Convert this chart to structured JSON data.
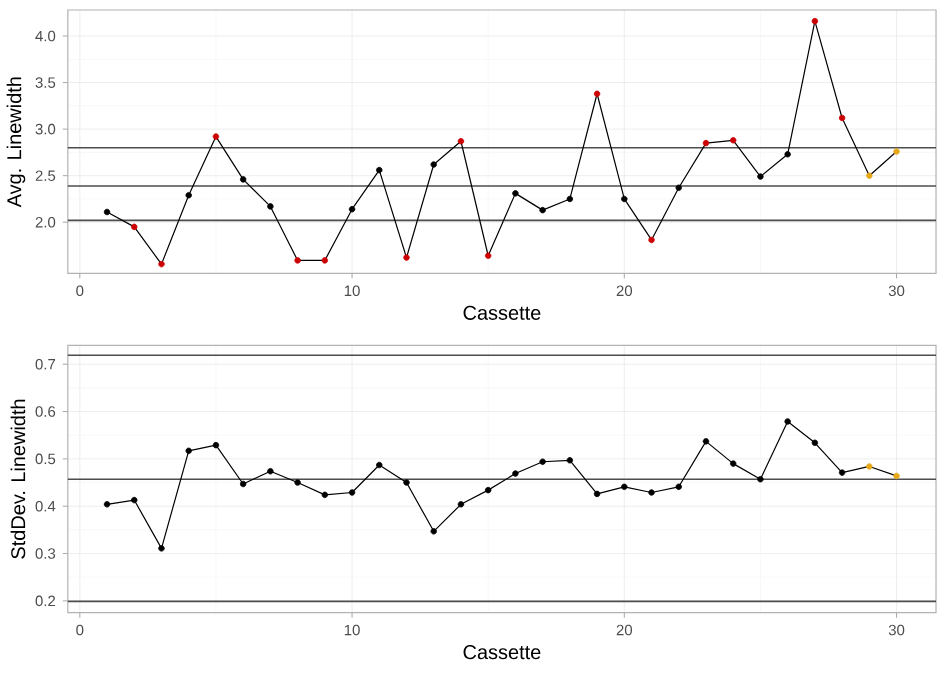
{
  "chart_data": [
    {
      "type": "line",
      "xlabel": "Cassette",
      "ylabel": "Avg. Linewidth",
      "grid": true,
      "marker": "circle",
      "line_style": "solid",
      "xlim": [
        -0.44,
        31.45
      ],
      "ylim": [
        1.45,
        4.28
      ],
      "xticks": [
        0,
        10,
        20,
        30
      ],
      "yticks": [
        {
          "value": 2.0,
          "label": "2.0"
        },
        {
          "value": 2.5,
          "label": "2.5"
        },
        {
          "value": 3.0,
          "label": "3.0"
        },
        {
          "value": 3.5,
          "label": "3.5"
        },
        {
          "value": 4.0,
          "label": "4.0"
        }
      ],
      "x": [
        1,
        2,
        3,
        4,
        5,
        6,
        7,
        8,
        9,
        10,
        11,
        12,
        13,
        14,
        15,
        16,
        17,
        18,
        19,
        20,
        21,
        22,
        23,
        24,
        25,
        26,
        27,
        28,
        29,
        30
      ],
      "values": [
        2.11,
        1.95,
        1.55,
        2.29,
        2.92,
        2.46,
        2.17,
        1.59,
        1.59,
        2.14,
        2.56,
        1.62,
        2.62,
        2.87,
        1.64,
        2.31,
        2.13,
        2.25,
        3.38,
        2.25,
        1.81,
        2.37,
        2.85,
        2.88,
        2.49,
        2.73,
        4.16,
        3.12,
        2.5,
        2.76
      ],
      "color": "#000000",
      "colors": [
        "#000000",
        "#cc0000",
        "#cc0000",
        "#000000",
        "#cc0000",
        "#000000",
        "#000000",
        "#cc0000",
        "#cc0000",
        "#000000",
        "#000000",
        "#cc0000",
        "#000000",
        "#cc0000",
        "#cc0000",
        "#000000",
        "#000000",
        "#000000",
        "#cc0000",
        "#000000",
        "#cc0000",
        "#000000",
        "#cc0000",
        "#cc0000",
        "#000000",
        "#000000",
        "#cc0000",
        "#cc0000",
        "#e6a817",
        "#e6a817"
      ],
      "ref_lines": [
        {
          "axis": "y",
          "value": 2.8,
          "color": "#4d4d4d"
        },
        {
          "axis": "y",
          "value": 2.39,
          "color": "#4d4d4d"
        },
        {
          "axis": "y",
          "value": 2.02,
          "color": "#4d4d4d"
        }
      ]
    },
    {
      "type": "line",
      "xlabel": "Cassette",
      "ylabel": "StdDev. Linewidth",
      "grid": true,
      "marker": "circle",
      "line_style": "solid",
      "xlim": [
        -0.44,
        31.45
      ],
      "ylim": [
        0.175,
        0.74
      ],
      "xticks": [
        0,
        10,
        20,
        30
      ],
      "yticks": [
        0.2,
        0.3,
        0.4,
        0.5,
        0.6,
        0.7
      ],
      "x": [
        1,
        2,
        3,
        4,
        5,
        6,
        7,
        8,
        9,
        10,
        11,
        12,
        13,
        14,
        15,
        16,
        17,
        18,
        19,
        20,
        21,
        22,
        23,
        24,
        25,
        26,
        27,
        28,
        29,
        30
      ],
      "values": [
        0.404,
        0.413,
        0.311,
        0.517,
        0.529,
        0.447,
        0.474,
        0.45,
        0.424,
        0.429,
        0.487,
        0.45,
        0.347,
        0.404,
        0.434,
        0.469,
        0.494,
        0.497,
        0.426,
        0.441,
        0.429,
        0.441,
        0.537,
        0.49,
        0.457,
        0.579,
        0.534,
        0.471,
        0.484,
        0.464
      ],
      "color": "#000000",
      "colors": [
        "#000000",
        "#000000",
        "#000000",
        "#000000",
        "#000000",
        "#000000",
        "#000000",
        "#000000",
        "#000000",
        "#000000",
        "#000000",
        "#000000",
        "#000000",
        "#000000",
        "#000000",
        "#000000",
        "#000000",
        "#000000",
        "#000000",
        "#000000",
        "#000000",
        "#000000",
        "#000000",
        "#000000",
        "#000000",
        "#000000",
        "#000000",
        "#000000",
        "#e6a817",
        "#e6a817"
      ],
      "ref_lines": [
        {
          "axis": "y",
          "value": 0.719,
          "color": "#4d4d4d"
        },
        {
          "axis": "y",
          "value": 0.457,
          "color": "#4d4d4d"
        },
        {
          "axis": "y",
          "value": 0.199,
          "color": "#4d4d4d"
        }
      ]
    }
  ]
}
